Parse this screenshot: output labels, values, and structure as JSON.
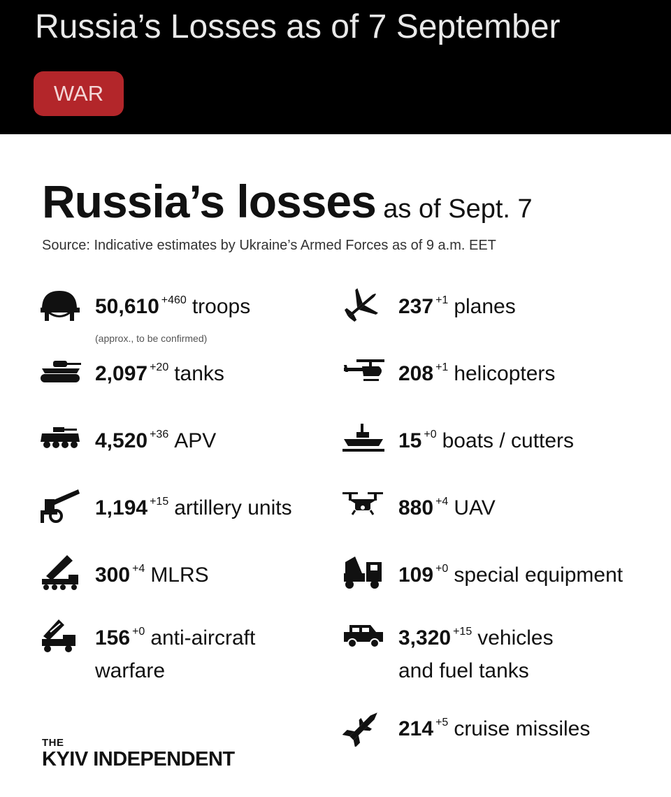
{
  "header": {
    "title": "Russia’s Losses as of 7 September",
    "badge": "WAR"
  },
  "card": {
    "title_main": "Russia’s losses",
    "title_sub": "as of Sept. 7",
    "source": "Source: Indicative estimates by Ukraine’s Armed Forces as of 9 a.m. EET"
  },
  "stats": {
    "troops": {
      "icon": "helmet-icon",
      "value": "50,610",
      "delta": "+460",
      "label": "troops",
      "note": "(approx., to be confirmed)"
    },
    "tanks": {
      "icon": "tank-icon",
      "value": "2,097",
      "delta": "+20",
      "label": "tanks"
    },
    "apv": {
      "icon": "apv-icon",
      "value": "4,520",
      "delta": "+36",
      "label": "APV"
    },
    "artillery": {
      "icon": "artillery-icon",
      "value": "1,194",
      "delta": "+15",
      "label": "artillery units"
    },
    "mlrs": {
      "icon": "mlrs-icon",
      "value": "300",
      "delta": "+4",
      "label": "MLRS"
    },
    "anti_aircraft": {
      "icon": "anti-aircraft-icon",
      "value": "156",
      "delta": "+0",
      "label": "anti-aircraft",
      "label_line2": "warfare"
    },
    "planes": {
      "icon": "plane-icon",
      "value": "237",
      "delta": "+1",
      "label": "planes"
    },
    "helicopters": {
      "icon": "helicopter-icon",
      "value": "208",
      "delta": "+1",
      "label": "helicopters"
    },
    "boats": {
      "icon": "boat-icon",
      "value": "15",
      "delta": "+0",
      "label": "boats / cutters"
    },
    "uav": {
      "icon": "drone-icon",
      "value": "880",
      "delta": "+4",
      "label": "UAV"
    },
    "special_equipment": {
      "icon": "special-equipment-icon",
      "value": "109",
      "delta": "+0",
      "label": "special equipment"
    },
    "vehicles": {
      "icon": "vehicle-icon",
      "value": "3,320",
      "delta": "+15",
      "label": "vehicles",
      "label_line2": "and fuel tanks"
    },
    "cruise_missiles": {
      "icon": "missile-icon",
      "value": "214",
      "delta": "+5",
      "label": "cruise missiles"
    }
  },
  "logo": {
    "small": "THE",
    "big": "KYIV INDEPENDENT"
  }
}
